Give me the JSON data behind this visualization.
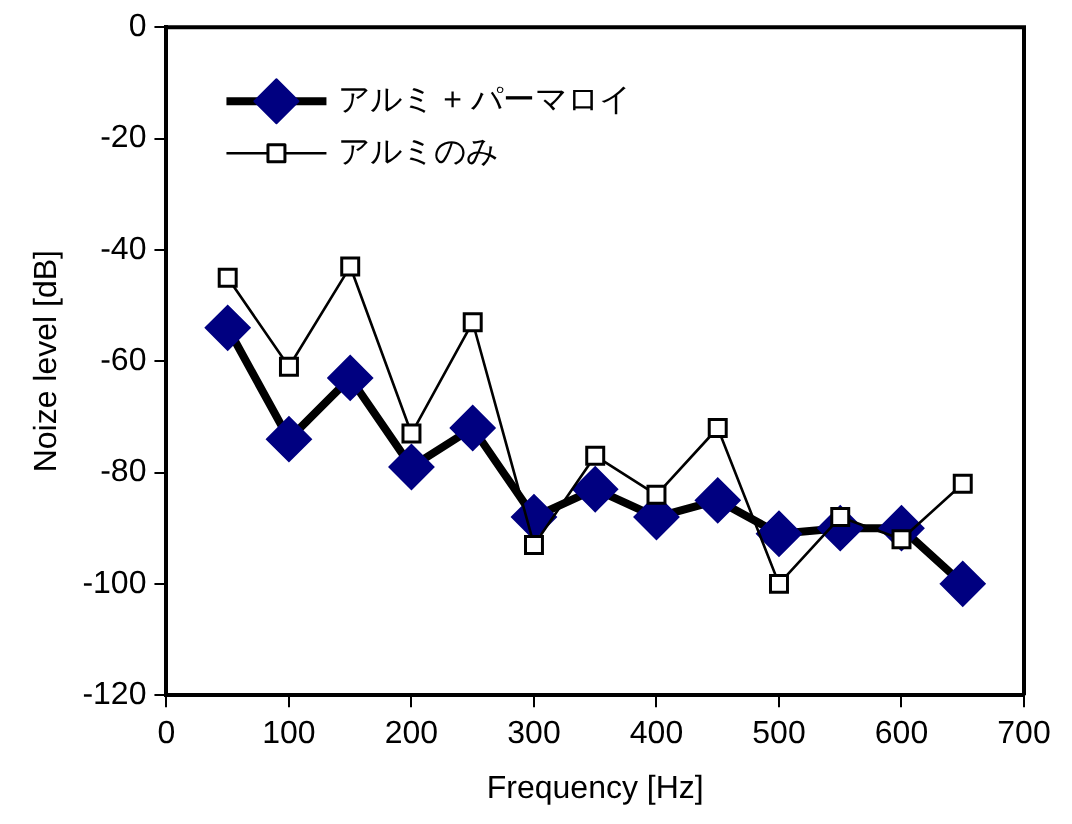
{
  "chart_data": {
    "type": "line",
    "xlabel": "Frequency [Hz]",
    "ylabel": "Noize level [dB]",
    "x": [
      50,
      100,
      150,
      200,
      250,
      300,
      350,
      400,
      450,
      500,
      550,
      600,
      650
    ],
    "xlim": [
      0,
      700
    ],
    "xticks": [
      0,
      100,
      200,
      300,
      400,
      500,
      600,
      700
    ],
    "ylim": [
      -120,
      0
    ],
    "yticks": [
      -120,
      -100,
      -80,
      -60,
      -40,
      -20,
      0
    ],
    "grid": false,
    "legend": "top left",
    "series": [
      {
        "name": "アルミ + パーマロイ",
        "color": "#000080",
        "marker": "diamond",
        "values": [
          -54,
          -74,
          -63,
          -79,
          -72,
          -88,
          -83,
          -88,
          -85,
          -91,
          -90,
          -90,
          -100
        ]
      },
      {
        "name": "アルミのみ",
        "color": "#000000",
        "marker": "square",
        "values": [
          -45,
          -61,
          -43,
          -73,
          -53,
          -93,
          -77,
          -84,
          -72,
          -100,
          -88,
          -92,
          -82
        ]
      }
    ]
  }
}
